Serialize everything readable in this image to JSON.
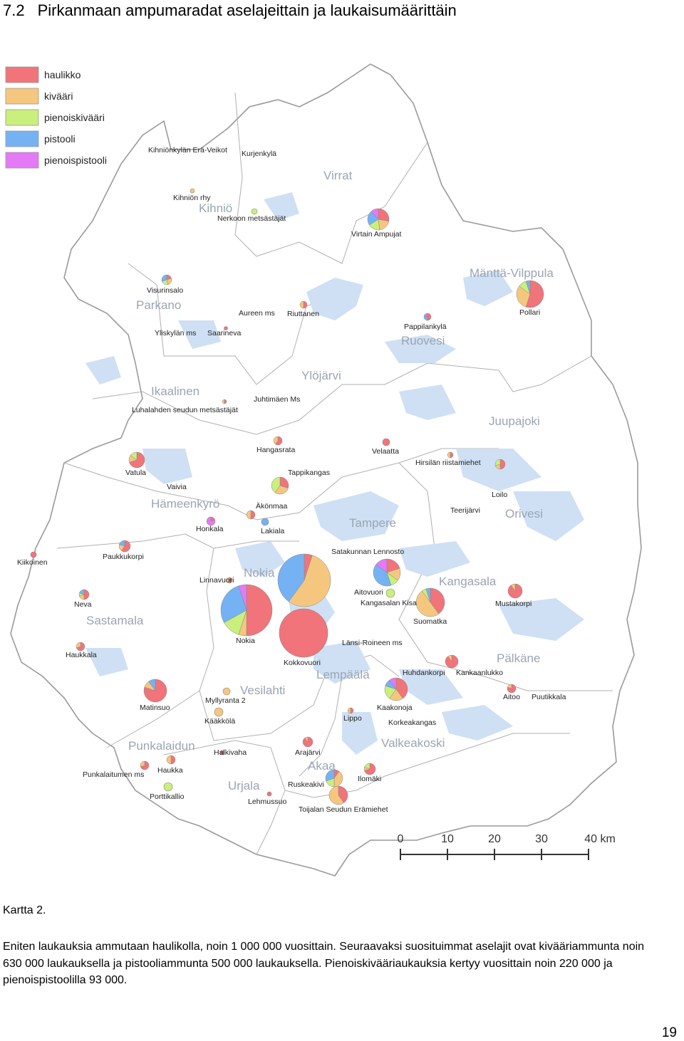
{
  "heading": {
    "number": "7.2",
    "title": "Pirkanmaan ampumaradat aselajeittain ja laukaisumäärittäin"
  },
  "legend": [
    {
      "label": "haulikko",
      "color": "#f0747a"
    },
    {
      "label": "kivääri",
      "color": "#f5c77e"
    },
    {
      "label": "pienoiskivääri",
      "color": "#c9ef7d"
    },
    {
      "label": "pistooli",
      "color": "#74b2f4"
    },
    {
      "label": "pienoispistooli",
      "color": "#e47af5"
    }
  ],
  "municipalities": [
    "Virrat",
    "Kihniö",
    "Parkano",
    "Mänttä-Vilppula",
    "Ruovesi",
    "Ylöjärvi",
    "Ikaalinen",
    "Juupajoki",
    "Hämeenkyrö",
    "Tampere",
    "Orivesi",
    "Nokia",
    "Kangasala",
    "Sastamala",
    "Pälkäne",
    "Lempäälä",
    "Vesilahti",
    "Punkalaidun",
    "Valkeakoski",
    "Akaa",
    "Urjala"
  ],
  "ranges": [
    "Kihniönkylän Erä-Veikot",
    "Kurjenkylä",
    "Kihniön rhy",
    "Nerkoon metsästäjät",
    "Virtain Ampujat",
    "Visurinsalo",
    "Aureen ms",
    "Riuttanen",
    "Yliskylän ms",
    "Saarineva",
    "Pollari",
    "Pappilankylä",
    "Juhtimäen Ms",
    "Luhalahden seudun metsästäjät",
    "Hangasrata",
    "Velaatta",
    "Hirsilän riistamiehet",
    "Vatula",
    "Tappikangas",
    "Vaivia",
    "Äkönmaa",
    "Loilo",
    "Honkala",
    "Teerijärvi",
    "Lakiala",
    "Satakunnan Lennosto",
    "Kiikoinen",
    "Paukkukorpi",
    "Linnavuori",
    "Aitovuori",
    "Kangasalan Kisa",
    "Mustakorpi",
    "Neva",
    "Suomatka",
    "Nokia",
    "Länsi-Roineen ms",
    "Haukkala",
    "Kokkovuori",
    "Huhdankorpi",
    "Kankaanlukko",
    "Aitoo",
    "Puutikkala",
    "Matinsuo",
    "Myllyranta 2",
    "Kaakonoja",
    "Kääkkölä",
    "Lippo",
    "Korkeakangas",
    "Halkivaha",
    "Arajärvi",
    "Punkalaitumen ms",
    "Haukka",
    "Ruskeakivi",
    "Ilomäki",
    "Porttikallio",
    "Lehmussuo",
    "Toijalan Seudun Erämiehet"
  ],
  "scale": {
    "ticks": [
      "0",
      "10",
      "20",
      "30",
      "40 km"
    ]
  },
  "caption": "Kartta 2.",
  "paragraph": "Eniten laukauksia ammutaan haulikolla, noin 1 000 000 vuosittain. Seuraavaksi suosituimmat aselajit ovat kivääriammunta noin 630 000 laukauksella ja pistooliammunta 500 000 laukauksella. Pienoiskivääriaukauksia kertyy vuosittain noin 220 000 ja pienoispistoolilla 93 000.",
  "page_number": "19"
}
